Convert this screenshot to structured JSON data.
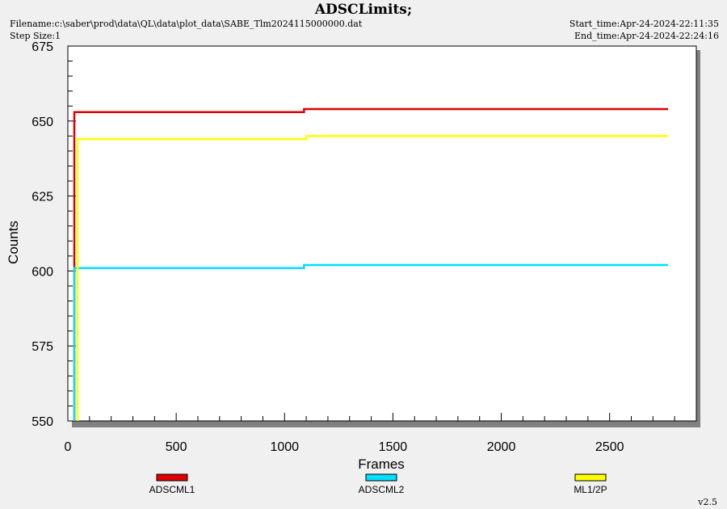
{
  "header": {
    "title": "ADSCLimits;",
    "filename": "Filename:c:\\saber\\prod\\data\\QL\\data\\plot_data\\SABE_Tlm2024115000000.dat",
    "step_size": "Step Size:1",
    "start_time": "Start_time:Apr-24-2024-22:11:35",
    "end_time": "End_time:Apr-24-2024-22:24:16"
  },
  "footer": {
    "version": "v2.5"
  },
  "chart_data": {
    "type": "line",
    "title": "ADSCLimits;",
    "xlabel": "Frames",
    "ylabel": "Counts",
    "xlim": [
      0,
      2900
    ],
    "ylim": [
      550,
      675
    ],
    "xticks": [
      0,
      500,
      1000,
      1500,
      2000,
      2500
    ],
    "yticks": [
      550,
      575,
      600,
      625,
      650,
      675
    ],
    "grid": false,
    "legend_position": "bottom",
    "series": [
      {
        "name": "ADSCML1",
        "color": "#e00000",
        "x": [
          30,
          30,
          1090,
          1090,
          2770
        ],
        "y": [
          550,
          653,
          653,
          654,
          654
        ]
      },
      {
        "name": "ADSCML2",
        "color": "#00e0ff",
        "x": [
          30,
          30,
          1090,
          1090,
          2770
        ],
        "y": [
          550,
          601,
          601,
          602,
          602
        ]
      },
      {
        "name": "ML1/2P",
        "color": "#ffff00",
        "x": [
          45,
          45,
          1100,
          1100,
          2770
        ],
        "y": [
          550,
          644,
          644,
          645,
          645
        ]
      }
    ]
  }
}
